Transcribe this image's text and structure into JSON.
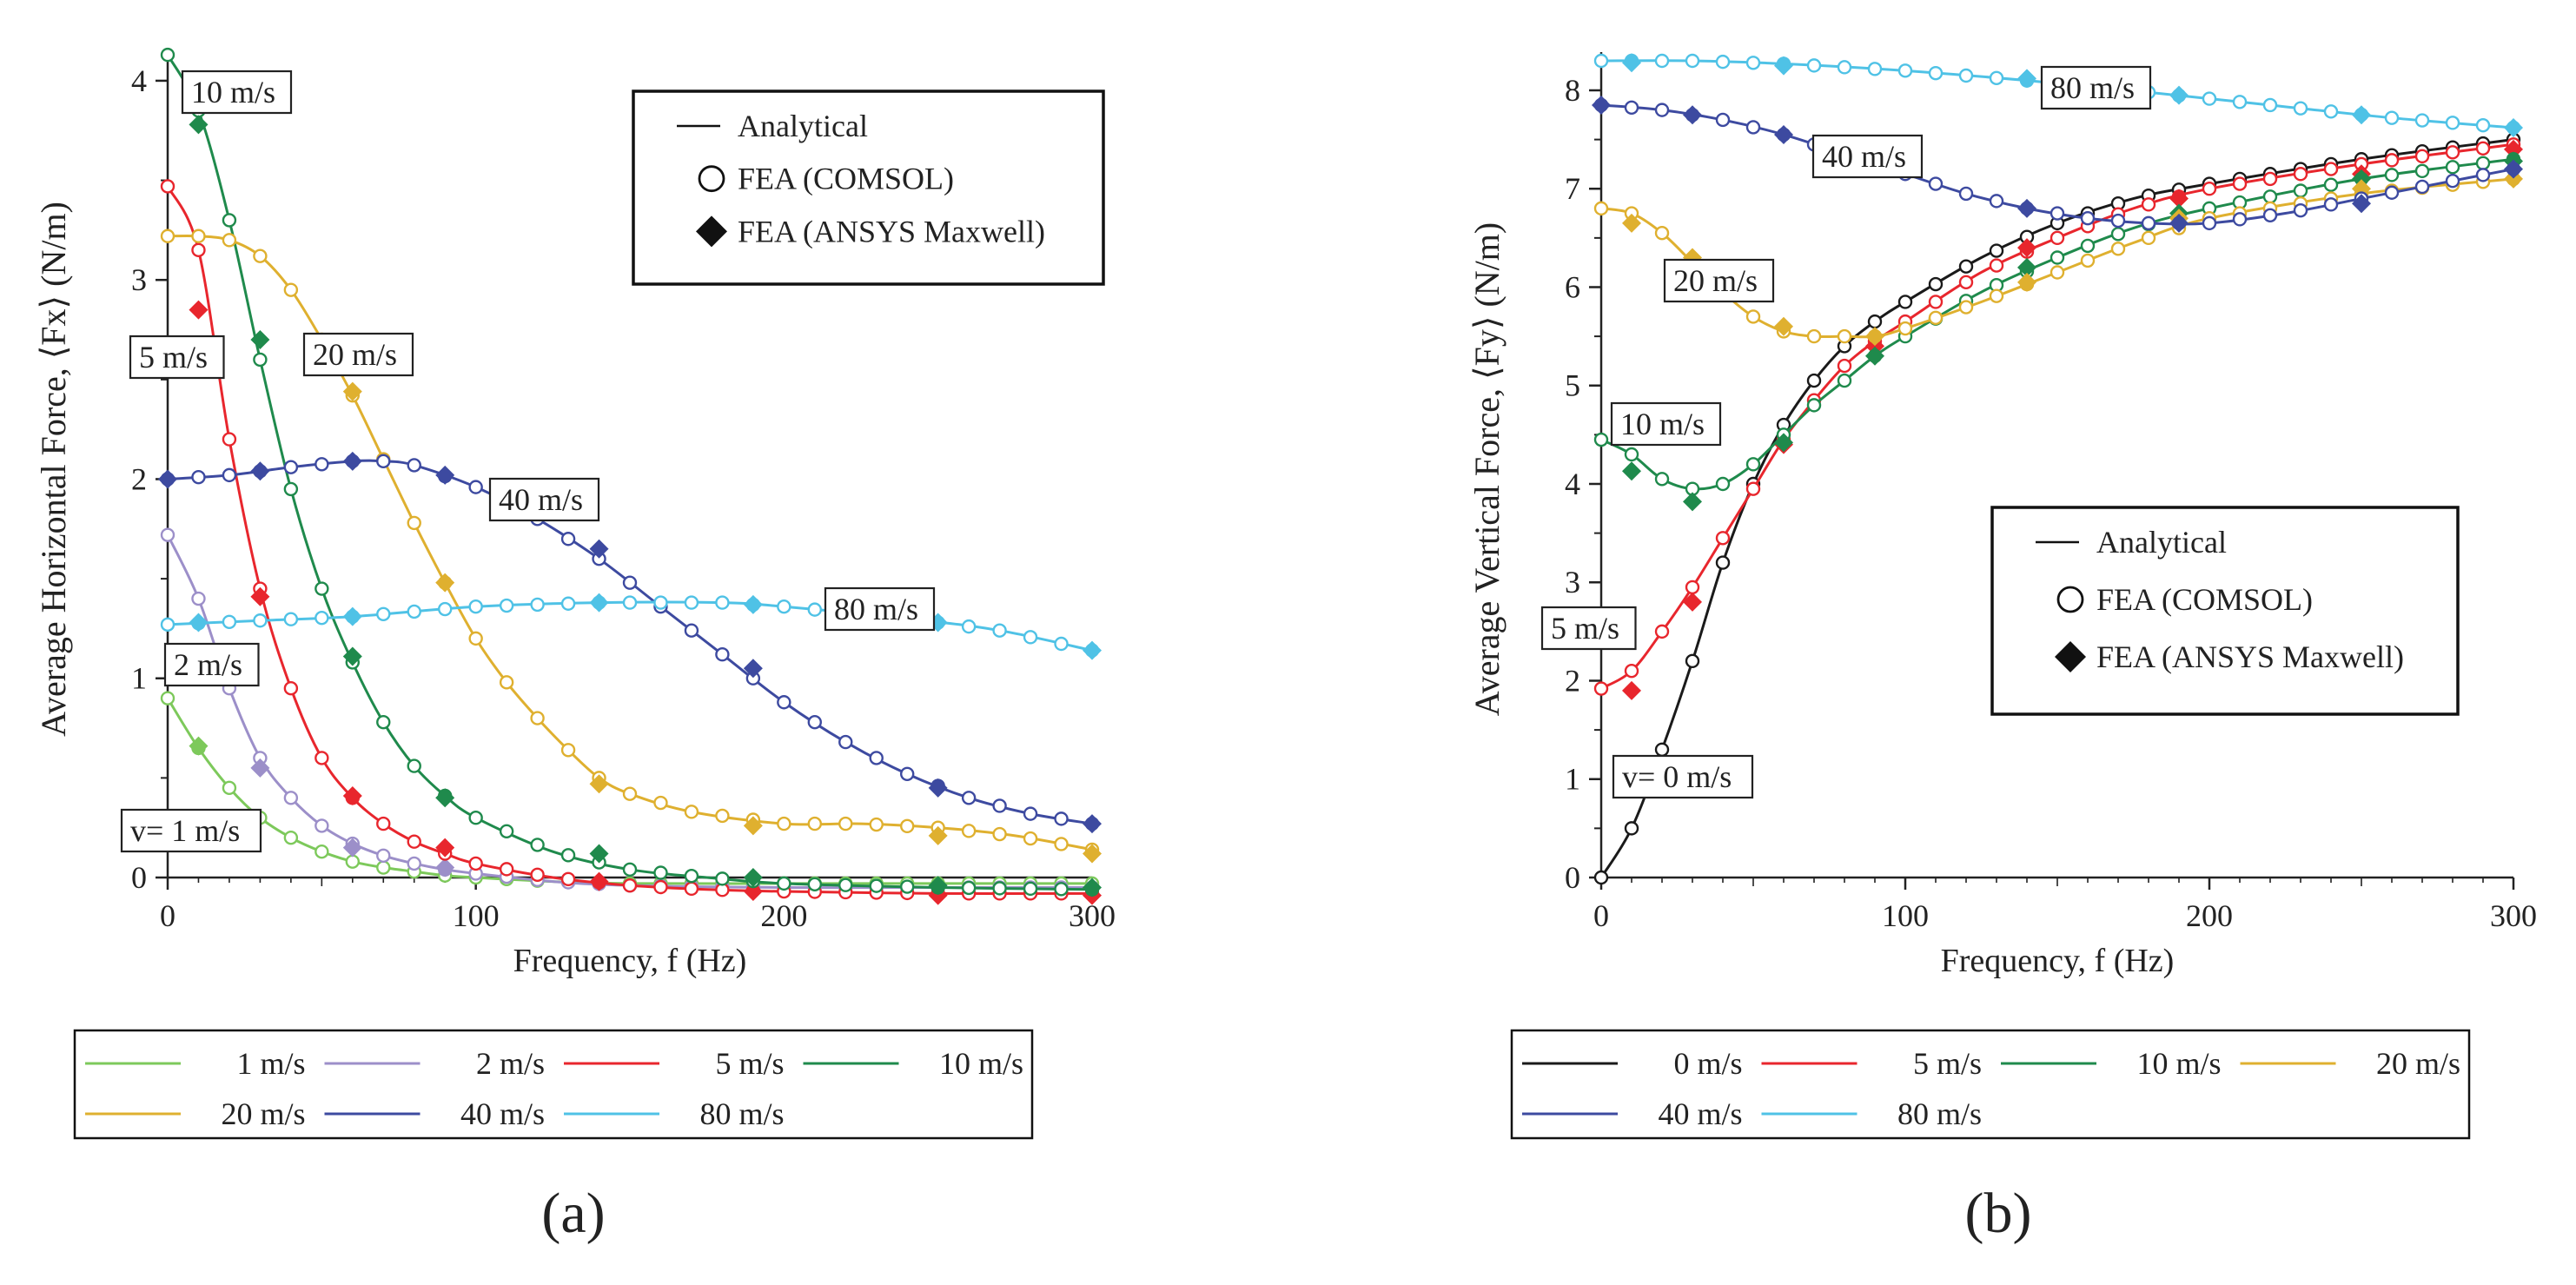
{
  "colors": {
    "1": "#7dc95b",
    "2": "#9c8fc9",
    "5": "#e8262d",
    "10": "#1f8a4c",
    "20": "#dfb02f",
    "40": "#3d4aa0",
    "80": "#4fc2e6",
    "0": "#1a1a1a"
  },
  "panel_labels": {
    "a": "(a)",
    "b": "(b)"
  },
  "chart_data": [
    {
      "id": "a",
      "type": "line",
      "xlabel": "Frequency, f (Hz)",
      "ylabel": "Average Horizontal Force, ⟨Fx⟩ (N/m)",
      "xlim": [
        0,
        300
      ],
      "ylim": [
        0,
        4.1
      ],
      "xticks": [
        "0",
        "100",
        "200",
        "300"
      ],
      "yticks": [
        "0",
        "1",
        "2",
        "3",
        "4"
      ],
      "marker_legend": [
        "Analytical",
        "FEA (COMSOL)",
        "FEA (ANSYS Maxwell)"
      ],
      "bottom_legend": [
        "1 m/s",
        "2 m/s",
        "5 m/s",
        "10 m/s",
        "20 m/s",
        "40 m/s",
        "80 m/s"
      ],
      "series": [
        {
          "name": "1 m/s",
          "color_key": "1",
          "label": "v= 1 m/s",
          "x": [
            0,
            10,
            20,
            30,
            40,
            50,
            60,
            70,
            80,
            90,
            100,
            125,
            150,
            200,
            250,
            300
          ],
          "y": [
            0.9,
            0.65,
            0.45,
            0.3,
            0.2,
            0.13,
            0.08,
            0.05,
            0.03,
            0.01,
            0,
            -0.02,
            -0.03,
            -0.03,
            -0.03,
            -0.03
          ],
          "ansys": [
            [
              10,
              0.66
            ]
          ]
        },
        {
          "name": "2 m/s",
          "color_key": "2",
          "label": "2 m/s",
          "x": [
            0,
            10,
            20,
            30,
            40,
            50,
            60,
            70,
            80,
            90,
            100,
            125,
            150,
            200,
            250,
            300
          ],
          "y": [
            1.72,
            1.4,
            0.95,
            0.6,
            0.4,
            0.26,
            0.17,
            0.11,
            0.07,
            0.04,
            0.02,
            -0.02,
            -0.04,
            -0.05,
            -0.05,
            -0.05
          ],
          "ansys": [
            [
              30,
              0.55
            ],
            [
              60,
              0.15
            ],
            [
              90,
              0.05
            ]
          ]
        },
        {
          "name": "5 m/s",
          "color_key": "5",
          "label": "5 m/s",
          "x": [
            0,
            10,
            20,
            30,
            40,
            50,
            60,
            70,
            80,
            90,
            100,
            125,
            150,
            175,
            200,
            250,
            300
          ],
          "y": [
            3.47,
            3.15,
            2.2,
            1.45,
            0.95,
            0.6,
            0.4,
            0.27,
            0.18,
            0.12,
            0.07,
            0.0,
            -0.04,
            -0.06,
            -0.07,
            -0.08,
            -0.08
          ],
          "ansys": [
            [
              10,
              2.85
            ],
            [
              30,
              1.41
            ],
            [
              60,
              0.41
            ],
            [
              90,
              0.15
            ],
            [
              140,
              -0.02
            ],
            [
              190,
              -0.07
            ],
            [
              250,
              -0.09
            ],
            [
              300,
              -0.09
            ]
          ]
        },
        {
          "name": "10 m/s",
          "color_key": "10",
          "label": "10 m/s",
          "x": [
            0,
            10,
            20,
            30,
            40,
            50,
            60,
            70,
            80,
            90,
            100,
            125,
            150,
            175,
            200,
            250,
            300
          ],
          "y": [
            4.13,
            3.85,
            3.3,
            2.6,
            1.95,
            1.45,
            1.08,
            0.78,
            0.56,
            0.41,
            0.3,
            0.13,
            0.04,
            0.0,
            -0.03,
            -0.05,
            -0.06
          ],
          "ansys": [
            [
              10,
              3.78
            ],
            [
              30,
              2.7
            ],
            [
              60,
              1.11
            ],
            [
              90,
              0.4
            ],
            [
              140,
              0.12
            ],
            [
              190,
              0.0
            ],
            [
              250,
              -0.04
            ],
            [
              300,
              -0.05
            ]
          ]
        },
        {
          "name": "20 m/s",
          "color_key": "20",
          "label": "20 m/s",
          "x": [
            0,
            10,
            20,
            30,
            40,
            50,
            60,
            70,
            80,
            90,
            100,
            110,
            120,
            130,
            140,
            150,
            170,
            200,
            225,
            250,
            275,
            300
          ],
          "y": [
            3.22,
            3.22,
            3.2,
            3.12,
            2.95,
            2.7,
            2.42,
            2.1,
            1.78,
            1.48,
            1.2,
            0.98,
            0.8,
            0.64,
            0.5,
            0.42,
            0.33,
            0.27,
            0.27,
            0.25,
            0.21,
            0.14
          ],
          "ansys": [
            [
              60,
              2.44
            ],
            [
              90,
              1.48
            ],
            [
              140,
              0.47
            ],
            [
              190,
              0.26
            ],
            [
              250,
              0.21
            ],
            [
              300,
              0.12
            ]
          ]
        },
        {
          "name": "40 m/s",
          "color_key": "40",
          "label": "40 m/s",
          "x": [
            0,
            20,
            40,
            60,
            70,
            80,
            100,
            120,
            140,
            160,
            180,
            200,
            220,
            240,
            260,
            280,
            300
          ],
          "y": [
            2.0,
            2.02,
            2.06,
            2.09,
            2.09,
            2.07,
            1.96,
            1.8,
            1.6,
            1.36,
            1.12,
            0.88,
            0.68,
            0.52,
            0.4,
            0.32,
            0.27
          ],
          "ansys": [
            [
              0,
              2.0
            ],
            [
              30,
              2.04
            ],
            [
              60,
              2.09
            ],
            [
              90,
              2.02
            ],
            [
              140,
              1.65
            ],
            [
              190,
              1.05
            ],
            [
              250,
              0.45
            ],
            [
              300,
              0.27
            ]
          ]
        },
        {
          "name": "80 m/s",
          "color_key": "80",
          "label": "80 m/s",
          "x": [
            0,
            30,
            60,
            100,
            140,
            180,
            200,
            240,
            270,
            300
          ],
          "y": [
            1.27,
            1.29,
            1.31,
            1.36,
            1.38,
            1.38,
            1.36,
            1.3,
            1.24,
            1.14
          ],
          "ansys": [
            [
              10,
              1.28
            ],
            [
              60,
              1.31
            ],
            [
              140,
              1.38
            ],
            [
              190,
              1.37
            ],
            [
              250,
              1.28
            ],
            [
              300,
              1.14
            ]
          ]
        }
      ],
      "labels_text": {
        "title_legend_line": "Analytical"
      }
    },
    {
      "id": "b",
      "type": "line",
      "xlabel": "Frequency, f (Hz)",
      "ylabel": "Average Vertical Force, ⟨Fy⟩ (N/m)",
      "xlim": [
        0,
        300
      ],
      "ylim": [
        0,
        8.3
      ],
      "xticks": [
        "0",
        "100",
        "200",
        "300"
      ],
      "yticks": [
        "0",
        "1",
        "2",
        "3",
        "4",
        "5",
        "6",
        "7",
        "8"
      ],
      "marker_legend": [
        "Analytical",
        "FEA (COMSOL)",
        "FEA (ANSYS Maxwell)"
      ],
      "bottom_legend": [
        "0  m/s",
        "5 m/s",
        "10 m/s",
        "20 m/s",
        "40 m/s",
        "80 m/s"
      ],
      "series": [
        {
          "name": "0  m/s",
          "color_key": "0",
          "label": "v= 0 m/s",
          "x": [
            0,
            10,
            20,
            30,
            40,
            50,
            60,
            70,
            80,
            90,
            100,
            125,
            150,
            175,
            200,
            250,
            300
          ],
          "y": [
            0,
            0.5,
            1.3,
            2.2,
            3.2,
            4.0,
            4.6,
            5.05,
            5.4,
            5.65,
            5.85,
            6.3,
            6.65,
            6.9,
            7.05,
            7.3,
            7.5
          ],
          "ansys": []
        },
        {
          "name": "5 m/s",
          "color_key": "5",
          "label": "5 m/s",
          "x": [
            0,
            10,
            20,
            30,
            40,
            50,
            60,
            70,
            80,
            90,
            100,
            125,
            150,
            175,
            200,
            250,
            300
          ],
          "y": [
            1.92,
            2.1,
            2.5,
            2.95,
            3.45,
            3.95,
            4.45,
            4.85,
            5.2,
            5.45,
            5.65,
            6.15,
            6.5,
            6.8,
            7.0,
            7.25,
            7.45
          ],
          "ansys": [
            [
              10,
              1.9
            ],
            [
              30,
              2.8
            ],
            [
              60,
              4.4
            ],
            [
              90,
              5.4
            ],
            [
              140,
              6.4
            ],
            [
              190,
              6.9
            ],
            [
              250,
              7.15
            ],
            [
              300,
              7.4
            ]
          ]
        },
        {
          "name": "10 m/s",
          "color_key": "10",
          "label": "10 m/s",
          "x": [
            0,
            10,
            20,
            30,
            40,
            50,
            60,
            70,
            80,
            90,
            100,
            125,
            150,
            175,
            200,
            250,
            300
          ],
          "y": [
            4.45,
            4.3,
            4.05,
            3.95,
            4.0,
            4.2,
            4.5,
            4.8,
            5.05,
            5.3,
            5.5,
            5.95,
            6.3,
            6.6,
            6.8,
            7.1,
            7.3
          ],
          "ansys": [
            [
              10,
              4.13
            ],
            [
              30,
              3.82
            ],
            [
              60,
              4.42
            ],
            [
              90,
              5.3
            ],
            [
              140,
              6.2
            ],
            [
              190,
              6.75
            ],
            [
              250,
              7.1
            ],
            [
              300,
              7.28
            ]
          ]
        },
        {
          "name": "20 m/s",
          "color_key": "20",
          "label": "20 m/s",
          "x": [
            0,
            10,
            20,
            30,
            40,
            50,
            60,
            70,
            80,
            90,
            100,
            125,
            150,
            175,
            200,
            250,
            300
          ],
          "y": [
            6.8,
            6.75,
            6.55,
            6.25,
            5.95,
            5.7,
            5.55,
            5.5,
            5.5,
            5.5,
            5.58,
            5.85,
            6.15,
            6.45,
            6.7,
            6.95,
            7.1
          ],
          "ansys": [
            [
              10,
              6.65
            ],
            [
              30,
              6.3
            ],
            [
              60,
              5.6
            ],
            [
              90,
              5.5
            ],
            [
              140,
              6.05
            ],
            [
              190,
              6.7
            ],
            [
              250,
              7.0
            ],
            [
              300,
              7.1
            ]
          ]
        },
        {
          "name": "40 m/s",
          "color_key": "40",
          "label": "40 m/s",
          "x": [
            0,
            20,
            40,
            60,
            80,
            100,
            120,
            140,
            160,
            180,
            200,
            225,
            250,
            275,
            300
          ],
          "y": [
            7.85,
            7.8,
            7.7,
            7.55,
            7.35,
            7.15,
            6.95,
            6.8,
            6.7,
            6.65,
            6.65,
            6.75,
            6.9,
            7.05,
            7.2
          ],
          "ansys": [
            [
              0,
              7.85
            ],
            [
              30,
              7.75
            ],
            [
              60,
              7.55
            ],
            [
              140,
              6.8
            ],
            [
              190,
              6.65
            ],
            [
              250,
              6.85
            ],
            [
              300,
              7.2
            ]
          ]
        },
        {
          "name": "80 m/s",
          "color_key": "80",
          "label": "80 m/s",
          "x": [
            0,
            30,
            60,
            100,
            140,
            180,
            220,
            260,
            300
          ],
          "y": [
            8.3,
            8.3,
            8.27,
            8.2,
            8.1,
            7.98,
            7.85,
            7.72,
            7.62
          ],
          "ansys": [
            [
              10,
              8.28
            ],
            [
              60,
              8.25
            ],
            [
              140,
              8.12
            ],
            [
              190,
              7.95
            ],
            [
              250,
              7.75
            ],
            [
              300,
              7.62
            ]
          ]
        }
      ]
    }
  ]
}
